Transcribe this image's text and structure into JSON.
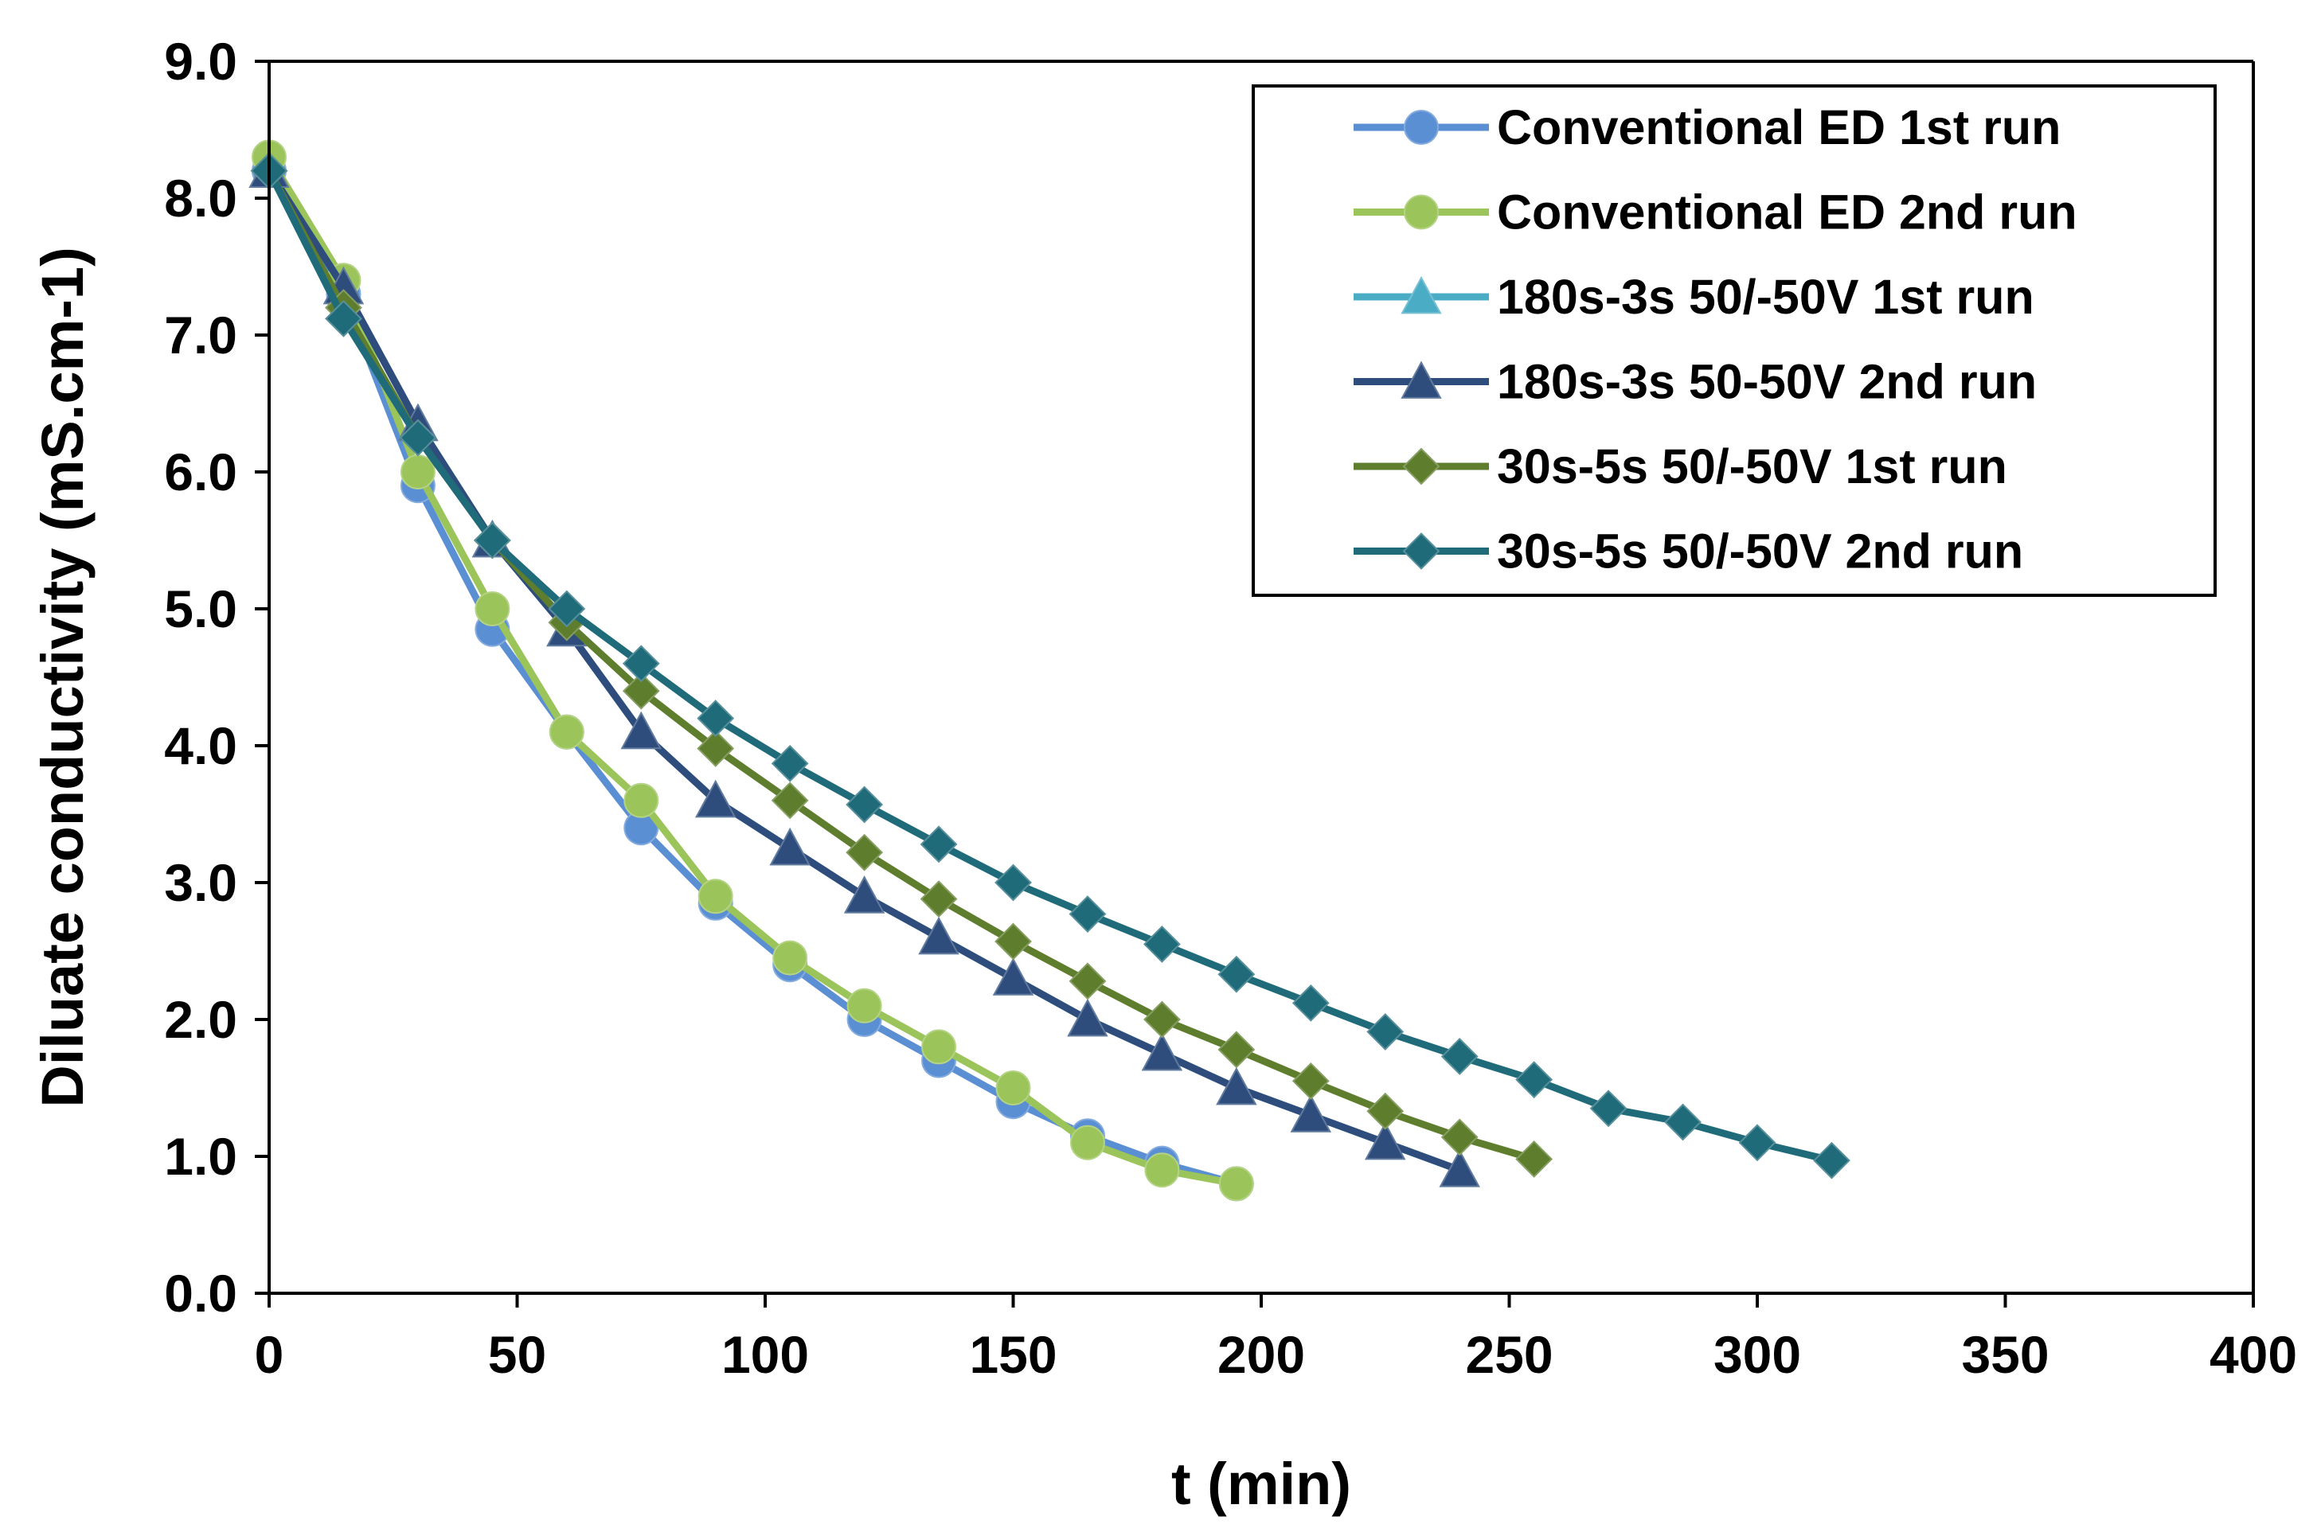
{
  "chart_data": {
    "type": "line",
    "title": "",
    "xlabel": "t (min)",
    "ylabel": "Diluate conductivity (mS.cm-1)",
    "xlim": [
      0,
      400
    ],
    "ylim": [
      0,
      9
    ],
    "xticks": [
      0,
      50,
      100,
      150,
      200,
      250,
      300,
      350,
      400
    ],
    "yticks": [
      0,
      1,
      2,
      3,
      4,
      5,
      6,
      7,
      8,
      9
    ],
    "xtick_labels": [
      "0",
      "50",
      "100",
      "150",
      "200",
      "250",
      "300",
      "350",
      "400"
    ],
    "ytick_labels": [
      "0.0",
      "1.0",
      "2.0",
      "3.0",
      "4.0",
      "5.0",
      "6.0",
      "7.0",
      "8.0",
      "9.0"
    ],
    "grid": false,
    "legend_position": "top-right",
    "series": [
      {
        "name": "Conventional ED 1st run",
        "color": "#5B8FD3",
        "marker": "circle",
        "x": [
          0,
          15,
          30,
          45,
          60,
          75,
          90,
          105,
          120,
          135,
          150,
          165,
          180,
          195
        ],
        "y": [
          8.2,
          7.3,
          5.9,
          4.85,
          4.1,
          3.4,
          2.85,
          2.4,
          2.0,
          1.7,
          1.4,
          1.15,
          0.95,
          0.8
        ]
      },
      {
        "name": "Conventional ED 2nd run",
        "color": "#9BC45B",
        "marker": "circle",
        "x": [
          0,
          15,
          30,
          45,
          60,
          75,
          90,
          105,
          120,
          135,
          150,
          165,
          180,
          195
        ],
        "y": [
          8.3,
          7.4,
          6.0,
          5.0,
          4.1,
          3.6,
          2.9,
          2.45,
          2.1,
          1.8,
          1.5,
          1.1,
          0.9,
          0.8
        ]
      },
      {
        "name": "180s-3s 50/-50V 1st run",
        "color": "#4BACC6",
        "marker": "triangle",
        "x": [
          0,
          15,
          30,
          45,
          60,
          75,
          90,
          105,
          120,
          135,
          150,
          165,
          180,
          195,
          210,
          225,
          240
        ],
        "y": [
          8.2,
          7.35,
          6.35,
          5.5,
          4.85,
          4.1,
          3.6,
          3.25,
          2.9,
          2.6,
          2.3,
          2.0,
          1.75,
          1.5,
          1.3,
          1.1,
          0.9
        ]
      },
      {
        "name": "180s-3s 50-50V 2nd run",
        "color": "#2E4D7C",
        "marker": "triangle",
        "x": [
          0,
          15,
          30,
          45,
          60,
          75,
          90,
          105,
          120,
          135,
          150,
          165,
          180,
          195,
          210,
          225,
          240
        ],
        "y": [
          8.2,
          7.35,
          6.35,
          5.5,
          4.85,
          4.1,
          3.6,
          3.25,
          2.9,
          2.6,
          2.3,
          2.0,
          1.75,
          1.5,
          1.3,
          1.1,
          0.9
        ]
      },
      {
        "name": "30s-5s 50/-50V 1st run",
        "color": "#5E7E2E",
        "marker": "diamond",
        "x": [
          0,
          15,
          30,
          45,
          60,
          75,
          90,
          105,
          120,
          135,
          150,
          165,
          180,
          195,
          210,
          225,
          240,
          255
        ],
        "y": [
          8.2,
          7.2,
          6.25,
          5.5,
          4.9,
          4.4,
          3.98,
          3.6,
          3.22,
          2.88,
          2.57,
          2.28,
          2.0,
          1.78,
          1.55,
          1.33,
          1.14,
          0.98
        ]
      },
      {
        "name": "30s-5s 50/-50V 2nd run",
        "color": "#1F6B7A",
        "marker": "diamond",
        "x": [
          0,
          15,
          30,
          45,
          60,
          75,
          90,
          105,
          120,
          135,
          150,
          165,
          180,
          195,
          210,
          225,
          240,
          255,
          270,
          285,
          300,
          315
        ],
        "y": [
          8.2,
          7.12,
          6.25,
          5.5,
          5.0,
          4.6,
          4.2,
          3.87,
          3.57,
          3.28,
          3.0,
          2.77,
          2.55,
          2.33,
          2.12,
          1.91,
          1.73,
          1.56,
          1.35,
          1.25,
          1.1,
          0.97
        ]
      }
    ]
  }
}
